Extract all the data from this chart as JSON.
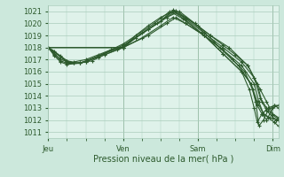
{
  "xlabel": "Pression niveau de la mer( hPa )",
  "x_ticks": [
    0,
    96,
    192,
    288
  ],
  "x_tick_labels": [
    "Jeu",
    "Ven",
    "Sam",
    "Dim"
  ],
  "ylim": [
    1010.5,
    1021.5
  ],
  "y_ticks": [
    1011,
    1012,
    1013,
    1014,
    1015,
    1016,
    1017,
    1018,
    1019,
    1020,
    1021
  ],
  "xlim": [
    0,
    295
  ],
  "bg_color": "#cce8dc",
  "plot_bg_color": "#dff2ea",
  "grid_color": "#aaccbb",
  "line_color": "#2d5a2d",
  "series": [
    [
      0,
      1018.0,
      8,
      1017.7,
      16,
      1017.2,
      24,
      1016.9,
      32,
      1016.8,
      48,
      1017.0,
      64,
      1017.4,
      80,
      1017.8,
      96,
      1018.0,
      112,
      1019.0,
      128,
      1019.8,
      144,
      1020.5,
      160,
      1021.0,
      176,
      1020.5,
      192,
      1019.8,
      208,
      1019.0,
      224,
      1018.2,
      240,
      1017.4,
      256,
      1016.5,
      264,
      1015.5,
      272,
      1014.5,
      280,
      1013.5,
      288,
      1012.5,
      295,
      1012.2
    ],
    [
      0,
      1018.0,
      8,
      1017.6,
      16,
      1017.2,
      24,
      1016.8,
      40,
      1016.7,
      56,
      1016.9,
      72,
      1017.4,
      96,
      1018.0,
      120,
      1019.2,
      144,
      1020.2,
      160,
      1021.1,
      176,
      1020.4,
      200,
      1019.2,
      224,
      1018.0,
      248,
      1016.8,
      264,
      1015.5,
      272,
      1013.8,
      280,
      1013.0,
      288,
      1012.4,
      295,
      1012.1
    ],
    [
      0,
      1018.0,
      16,
      1017.3,
      24,
      1016.9,
      32,
      1016.7,
      48,
      1016.8,
      72,
      1017.5,
      96,
      1018.2,
      128,
      1019.5,
      152,
      1020.5,
      164,
      1021.05,
      176,
      1020.5,
      208,
      1019.0,
      232,
      1018.0,
      256,
      1016.5,
      268,
      1015.0,
      274,
      1013.5,
      280,
      1012.8,
      288,
      1012.2,
      295,
      1012.0
    ],
    [
      0,
      1018.0,
      8,
      1017.5,
      16,
      1017.0,
      32,
      1016.7,
      48,
      1016.8,
      80,
      1017.8,
      96,
      1018.3,
      136,
      1020.0,
      156,
      1021.0,
      172,
      1020.4,
      196,
      1019.2,
      220,
      1018.0,
      244,
      1016.5,
      260,
      1015.0,
      268,
      1013.5,
      276,
      1012.5,
      284,
      1012.2,
      292,
      1012.0,
      295,
      1012.0
    ],
    [
      0,
      1018.0,
      8,
      1017.4,
      16,
      1016.9,
      24,
      1016.7,
      40,
      1016.7,
      64,
      1017.2,
      88,
      1017.8,
      96,
      1018.0,
      112,
      1018.8,
      140,
      1020.0,
      160,
      1021.0,
      176,
      1020.3,
      200,
      1019.0,
      224,
      1017.8,
      248,
      1016.5,
      264,
      1015.0,
      270,
      1013.5,
      276,
      1012.5,
      282,
      1012.2,
      290,
      1011.8,
      295,
      1011.5
    ],
    [
      0,
      1018.0,
      8,
      1017.3,
      16,
      1016.8,
      24,
      1016.6,
      40,
      1016.7,
      72,
      1017.5,
      96,
      1018.1,
      128,
      1019.5,
      152,
      1020.5,
      168,
      1021.0,
      188,
      1020.0,
      212,
      1018.5,
      236,
      1017.0,
      252,
      1016.0,
      262,
      1014.5,
      268,
      1013.2,
      274,
      1012.5,
      280,
      1012.0,
      288,
      1013.0,
      295,
      1013.2
    ],
    [
      0,
      1018.0,
      96,
      1018.0,
      128,
      1019.0,
      152,
      1020.0,
      164,
      1020.5,
      176,
      1020.0,
      200,
      1019.0,
      224,
      1017.5,
      248,
      1016.0,
      260,
      1015.0,
      266,
      1013.5,
      270,
      1011.5,
      276,
      1012.0,
      282,
      1012.8,
      290,
      1013.2,
      295,
      1013.2
    ],
    [
      0,
      1018.0,
      96,
      1018.0,
      120,
      1018.8,
      144,
      1019.8,
      160,
      1020.5,
      176,
      1020.0,
      200,
      1019.0,
      224,
      1017.5,
      248,
      1016.0,
      258,
      1014.5,
      264,
      1013.0,
      268,
      1011.8,
      274,
      1012.5,
      282,
      1013.0,
      290,
      1013.2,
      295,
      1013.0
    ]
  ]
}
